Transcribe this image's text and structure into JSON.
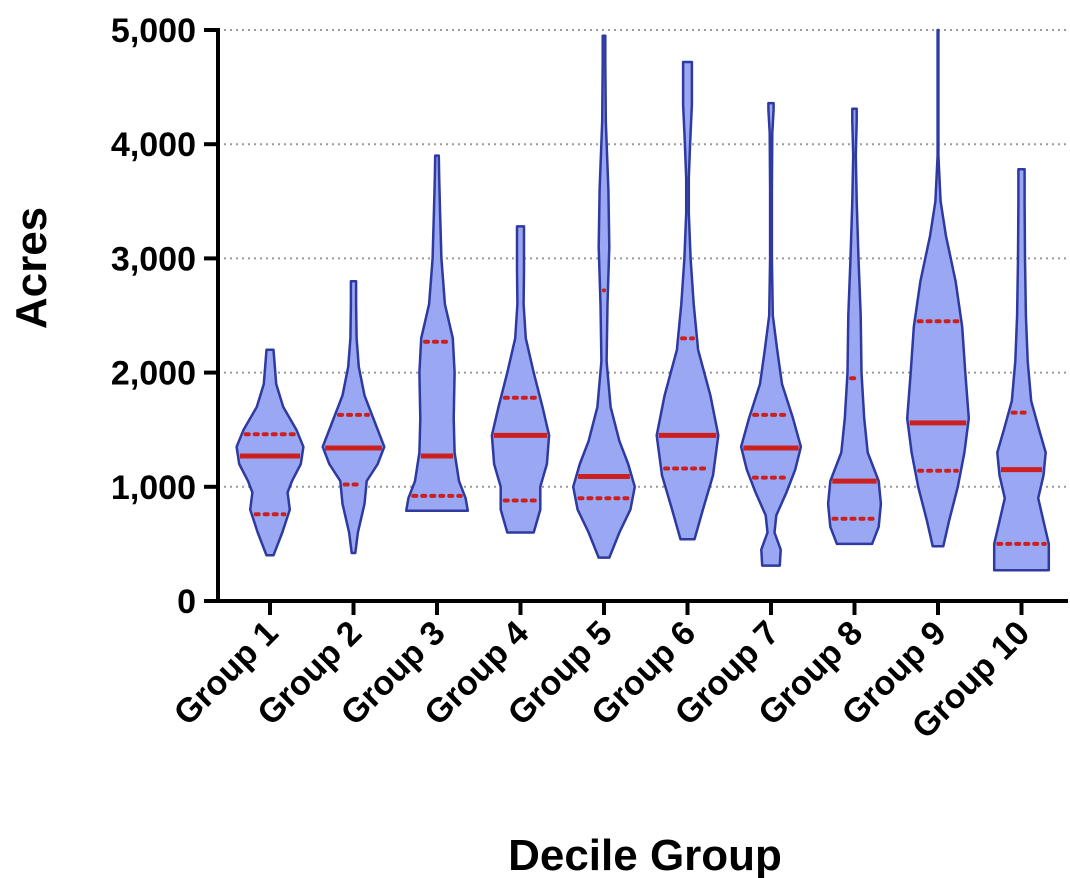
{
  "chart_data": {
    "type": "violin",
    "xlabel": "Decile Group",
    "ylabel": "Acres",
    "ylim": [
      0,
      5000
    ],
    "yticks": [
      0,
      1000,
      2000,
      3000,
      4000,
      5000
    ],
    "ytick_labels": [
      "0",
      "1,000",
      "2,000",
      "3,000",
      "4,000",
      "5,000"
    ],
    "grid": "horizontal dotted",
    "colors": {
      "fill": "#9aa7f2",
      "outline": "#2e3aa0",
      "median": "#cc1f1f",
      "quartile": "#cc1f1f",
      "grid": "#9a9a9a"
    },
    "categories": [
      "Group 1",
      "Group 2",
      "Group 3",
      "Group 4",
      "Group 5",
      "Group 6",
      "Group 7",
      "Group 8",
      "Group 9",
      "Group 10"
    ],
    "groups": [
      {
        "name": "Group 1",
        "min": 400,
        "max": 2200,
        "median": 1270,
        "q1": 760,
        "q3": 1460,
        "profile": [
          [
            400,
            0.08
          ],
          [
            600,
            0.28
          ],
          [
            800,
            0.45
          ],
          [
            950,
            0.4
          ],
          [
            1050,
            0.5
          ],
          [
            1200,
            0.7
          ],
          [
            1350,
            0.76
          ],
          [
            1500,
            0.6
          ],
          [
            1700,
            0.3
          ],
          [
            1900,
            0.14
          ],
          [
            2100,
            0.1
          ],
          [
            2200,
            0.08
          ]
        ]
      },
      {
        "name": "Group 2",
        "min": 420,
        "max": 2800,
        "median": 1340,
        "q1": 1020,
        "q3": 1630,
        "profile": [
          [
            420,
            0.04
          ],
          [
            600,
            0.1
          ],
          [
            850,
            0.25
          ],
          [
            1050,
            0.3
          ],
          [
            1200,
            0.55
          ],
          [
            1350,
            0.7
          ],
          [
            1550,
            0.5
          ],
          [
            1800,
            0.25
          ],
          [
            2050,
            0.12
          ],
          [
            2300,
            0.07
          ],
          [
            2600,
            0.06
          ],
          [
            2800,
            0.06
          ]
        ]
      },
      {
        "name": "Group 3",
        "min": 790,
        "max": 3900,
        "median": 1270,
        "q1": 920,
        "q3": 2270,
        "profile": [
          [
            790,
            0.7
          ],
          [
            900,
            0.65
          ],
          [
            1050,
            0.5
          ],
          [
            1300,
            0.4
          ],
          [
            1600,
            0.38
          ],
          [
            2000,
            0.4
          ],
          [
            2300,
            0.36
          ],
          [
            2600,
            0.18
          ],
          [
            3000,
            0.1
          ],
          [
            3400,
            0.07
          ],
          [
            3700,
            0.05
          ],
          [
            3900,
            0.04
          ]
        ]
      },
      {
        "name": "Group 4",
        "min": 600,
        "max": 3280,
        "median": 1450,
        "q1": 880,
        "q3": 1780,
        "profile": [
          [
            600,
            0.3
          ],
          [
            800,
            0.45
          ],
          [
            1000,
            0.45
          ],
          [
            1200,
            0.6
          ],
          [
            1450,
            0.65
          ],
          [
            1700,
            0.5
          ],
          [
            2000,
            0.3
          ],
          [
            2300,
            0.12
          ],
          [
            2600,
            0.07
          ],
          [
            2900,
            0.08
          ],
          [
            3100,
            0.08
          ],
          [
            3280,
            0.08
          ]
        ]
      },
      {
        "name": "Group 5",
        "min": 380,
        "max": 4950,
        "median": 1090,
        "q1": 900,
        "q3": 2720,
        "profile": [
          [
            380,
            0.12
          ],
          [
            600,
            0.35
          ],
          [
            800,
            0.6
          ],
          [
            1000,
            0.7
          ],
          [
            1200,
            0.55
          ],
          [
            1400,
            0.35
          ],
          [
            1700,
            0.15
          ],
          [
            2100,
            0.06
          ],
          [
            2600,
            0.08
          ],
          [
            3100,
            0.12
          ],
          [
            3600,
            0.1
          ],
          [
            4200,
            0.04
          ],
          [
            4700,
            0.03
          ],
          [
            4950,
            0.03
          ]
        ]
      },
      {
        "name": "Group 6",
        "min": 540,
        "max": 4720,
        "median": 1450,
        "q1": 1160,
        "q3": 2300,
        "profile": [
          [
            540,
            0.16
          ],
          [
            800,
            0.35
          ],
          [
            1100,
            0.58
          ],
          [
            1450,
            0.7
          ],
          [
            1800,
            0.52
          ],
          [
            2200,
            0.24
          ],
          [
            2600,
            0.14
          ],
          [
            3000,
            0.07
          ],
          [
            3400,
            0.03
          ],
          [
            3700,
            0.03
          ],
          [
            4000,
            0.06
          ],
          [
            4350,
            0.1
          ],
          [
            4600,
            0.1
          ],
          [
            4720,
            0.1
          ]
        ]
      },
      {
        "name": "Group 7",
        "min": 310,
        "max": 4360,
        "median": 1340,
        "q1": 1080,
        "q3": 1630,
        "profile": [
          [
            310,
            0.2
          ],
          [
            450,
            0.22
          ],
          [
            600,
            0.08
          ],
          [
            750,
            0.12
          ],
          [
            950,
            0.35
          ],
          [
            1150,
            0.55
          ],
          [
            1350,
            0.68
          ],
          [
            1600,
            0.5
          ],
          [
            1900,
            0.25
          ],
          [
            2200,
            0.14
          ],
          [
            2500,
            0.04
          ],
          [
            3000,
            0.02
          ],
          [
            3600,
            0.02
          ],
          [
            4100,
            0.03
          ],
          [
            4300,
            0.06
          ],
          [
            4360,
            0.06
          ]
        ]
      },
      {
        "name": "Group 8",
        "min": 500,
        "max": 4310,
        "median": 1050,
        "q1": 720,
        "q3": 1950,
        "profile": [
          [
            500,
            0.4
          ],
          [
            650,
            0.55
          ],
          [
            850,
            0.6
          ],
          [
            1050,
            0.55
          ],
          [
            1300,
            0.3
          ],
          [
            1600,
            0.22
          ],
          [
            2000,
            0.16
          ],
          [
            2500,
            0.14
          ],
          [
            3000,
            0.09
          ],
          [
            3500,
            0.05
          ],
          [
            3900,
            0.03
          ],
          [
            4200,
            0.05
          ],
          [
            4310,
            0.05
          ]
        ]
      },
      {
        "name": "Group 9",
        "min": 480,
        "max": 5000,
        "median": 1560,
        "q1": 1140,
        "q3": 2450,
        "profile": [
          [
            480,
            0.12
          ],
          [
            700,
            0.25
          ],
          [
            1000,
            0.45
          ],
          [
            1300,
            0.6
          ],
          [
            1600,
            0.7
          ],
          [
            2000,
            0.62
          ],
          [
            2400,
            0.55
          ],
          [
            2800,
            0.4
          ],
          [
            3200,
            0.18
          ],
          [
            3500,
            0.06
          ],
          [
            3900,
            0.01
          ],
          [
            4500,
            0.01
          ],
          [
            5000,
            0.01
          ]
        ]
      },
      {
        "name": "Group 10",
        "min": 270,
        "max": 3780,
        "median": 1150,
        "q1": 500,
        "q3": 1650,
        "profile": [
          [
            270,
            0.62
          ],
          [
            500,
            0.62
          ],
          [
            700,
            0.5
          ],
          [
            900,
            0.38
          ],
          [
            1100,
            0.5
          ],
          [
            1300,
            0.55
          ],
          [
            1500,
            0.4
          ],
          [
            1750,
            0.22
          ],
          [
            2100,
            0.14
          ],
          [
            2500,
            0.1
          ],
          [
            3000,
            0.08
          ],
          [
            3500,
            0.07
          ],
          [
            3780,
            0.07
          ]
        ]
      }
    ]
  }
}
